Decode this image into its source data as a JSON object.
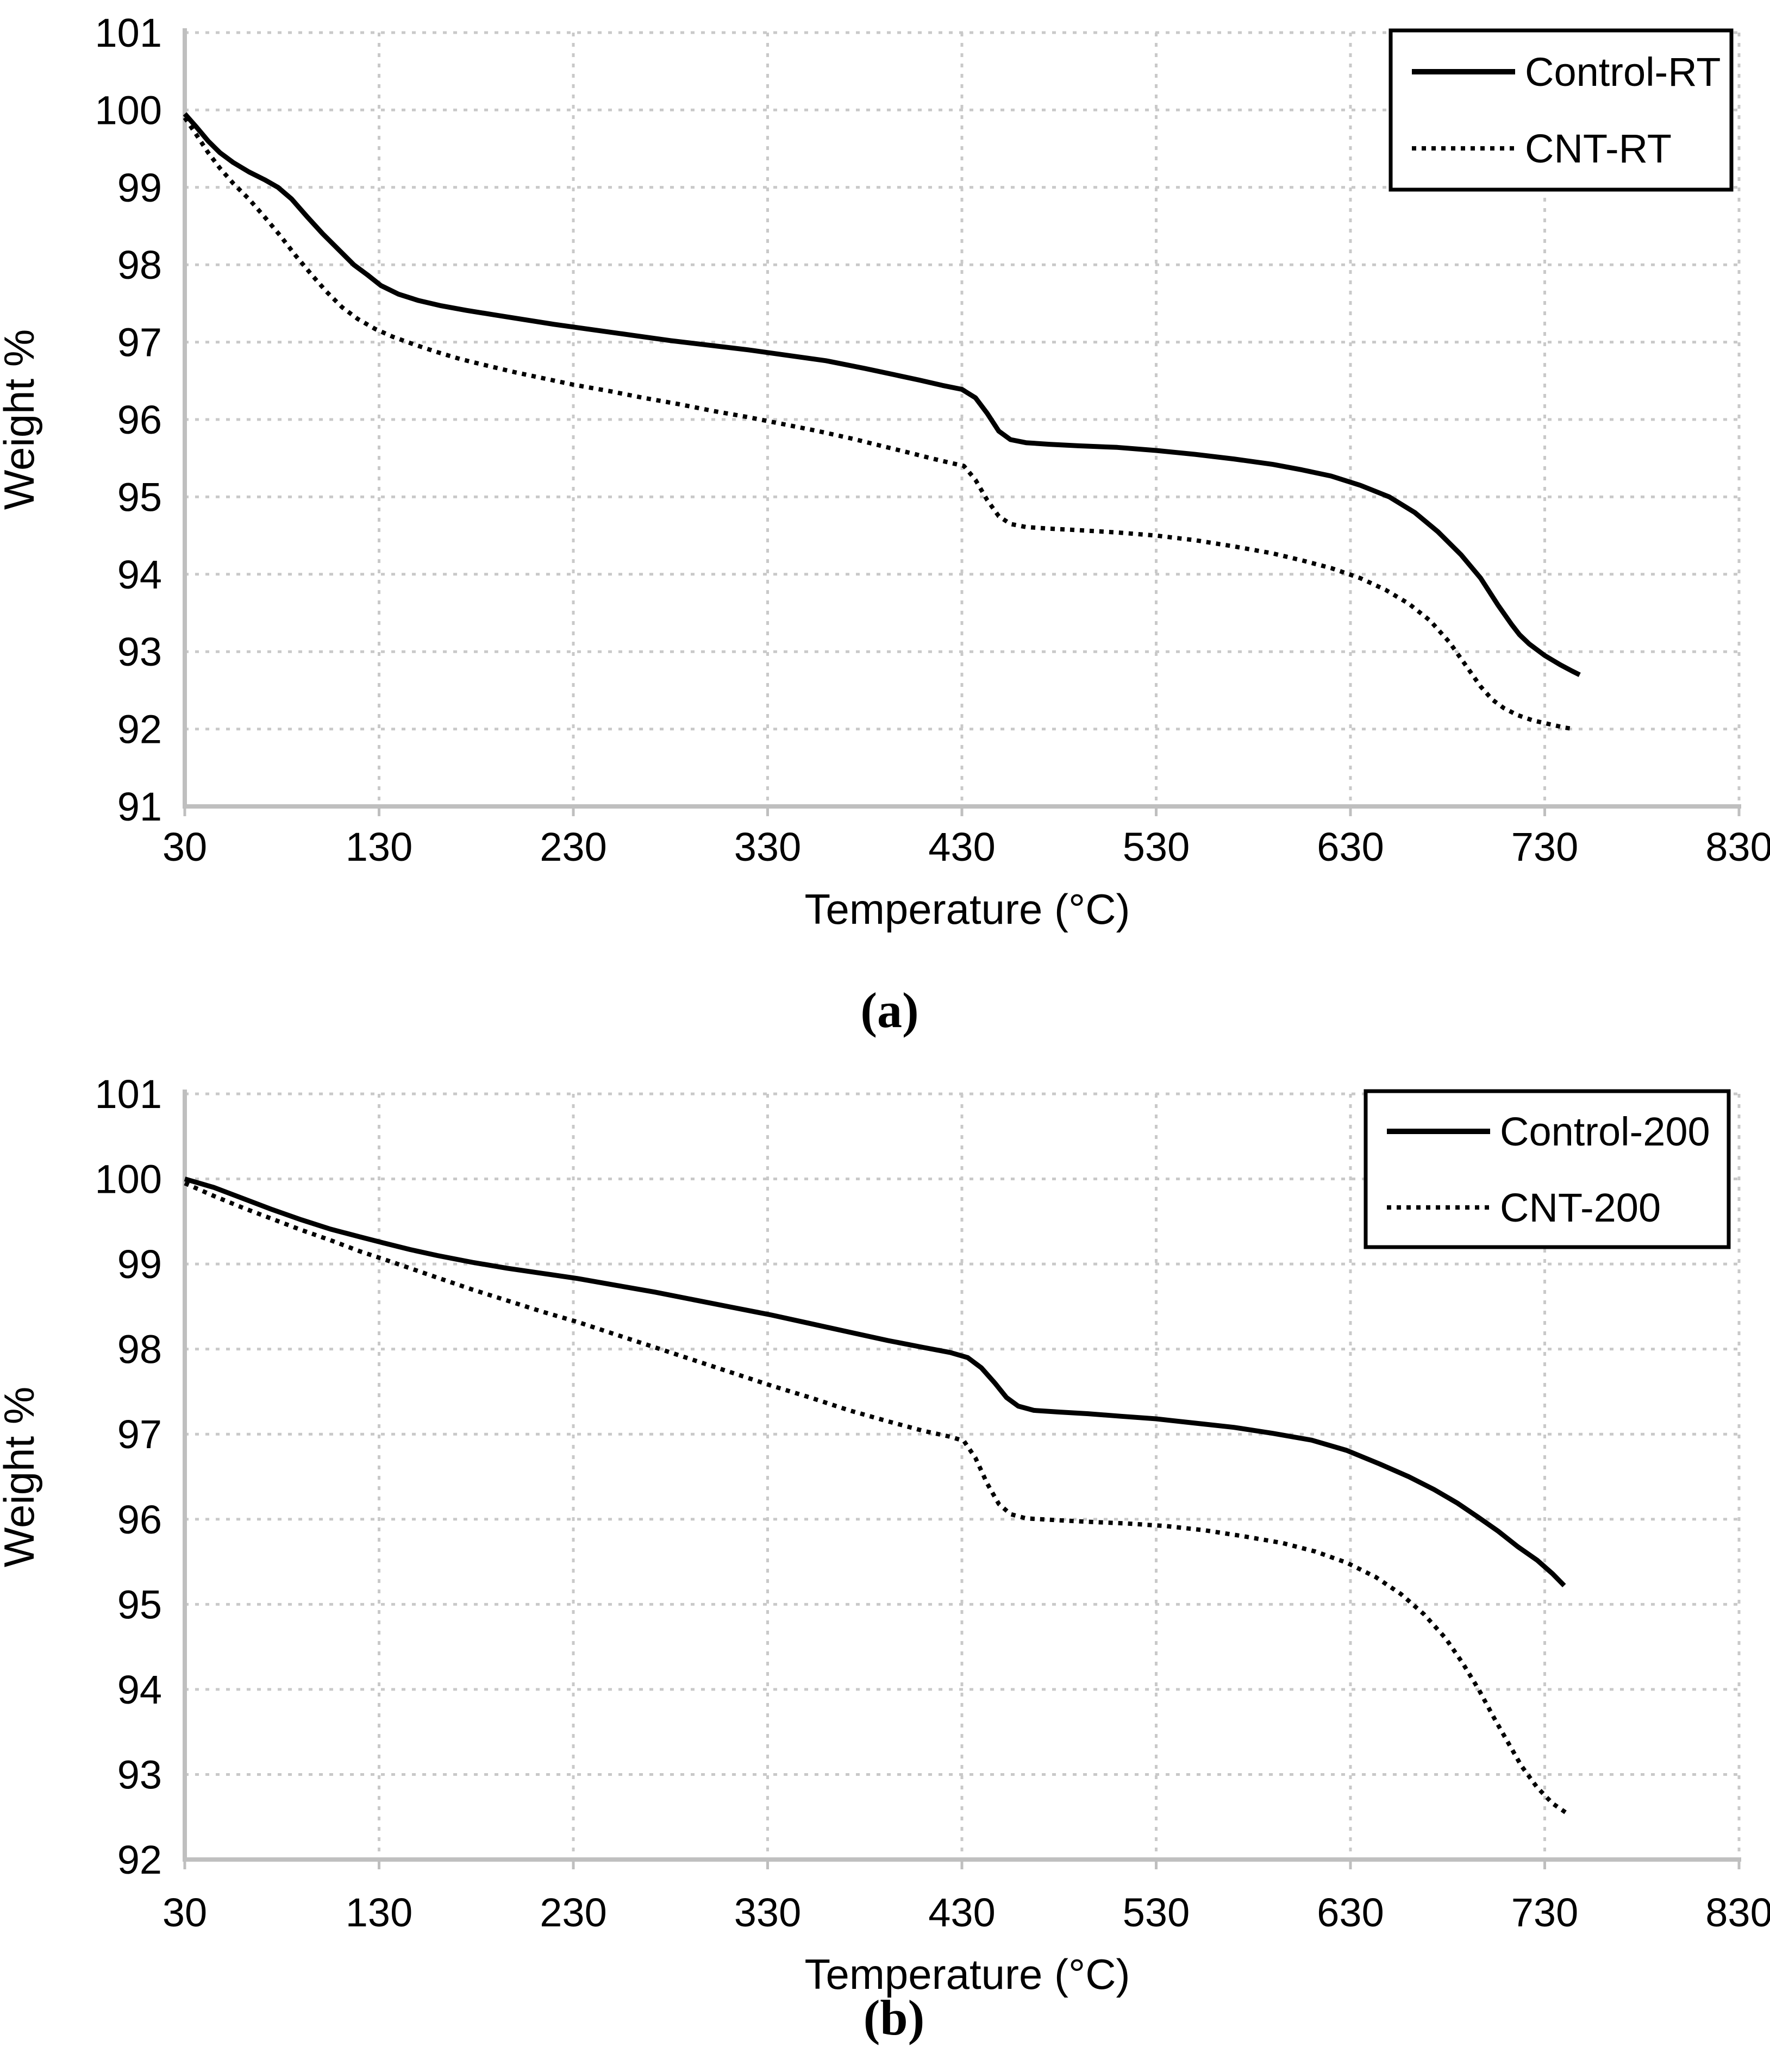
{
  "styles": {
    "background": "#ffffff",
    "curve_color": "#000000",
    "grid_color": "#c9c9c9",
    "axis_color": "#bfbfbf",
    "text_color": "#000000",
    "legend_border_color": "#000000",
    "legend_fill": "#ffffff"
  },
  "chart_data": [
    {
      "id": "a",
      "type": "line",
      "caption": "(a)",
      "xlabel": "Temperature (°C)",
      "ylabel": "Weight %",
      "xlim": [
        30,
        830
      ],
      "ylim": [
        91,
        101
      ],
      "x_ticks": [
        30,
        130,
        230,
        330,
        430,
        530,
        630,
        730,
        830
      ],
      "y_ticks": [
        101,
        100,
        99,
        98,
        97,
        96,
        95,
        94,
        93,
        92,
        91
      ],
      "grid": true,
      "legend_position": "top-right",
      "series": [
        {
          "name": "Control-RT",
          "line": "solid",
          "color": "#000000",
          "points": [
            [
              30,
              99.95
            ],
            [
              36,
              99.78
            ],
            [
              42,
              99.6
            ],
            [
              48,
              99.45
            ],
            [
              55,
              99.32
            ],
            [
              63,
              99.2
            ],
            [
              71,
              99.1
            ],
            [
              78,
              99.0
            ],
            [
              85,
              98.85
            ],
            [
              93,
              98.62
            ],
            [
              101,
              98.4
            ],
            [
              109,
              98.2
            ],
            [
              117,
              98.0
            ],
            [
              124,
              97.87
            ],
            [
              131,
              97.73
            ],
            [
              140,
              97.62
            ],
            [
              150,
              97.54
            ],
            [
              162,
              97.47
            ],
            [
              175,
              97.41
            ],
            [
              190,
              97.35
            ],
            [
              205,
              97.29
            ],
            [
              220,
              97.23
            ],
            [
              240,
              97.16
            ],
            [
              260,
              97.09
            ],
            [
              280,
              97.02
            ],
            [
              300,
              96.96
            ],
            [
              320,
              96.9
            ],
            [
              340,
              96.83
            ],
            [
              360,
              96.76
            ],
            [
              380,
              96.66
            ],
            [
              395,
              96.58
            ],
            [
              408,
              96.51
            ],
            [
              420,
              96.44
            ],
            [
              430,
              96.39
            ],
            [
              437,
              96.28
            ],
            [
              443,
              96.08
            ],
            [
              449,
              95.85
            ],
            [
              455,
              95.74
            ],
            [
              463,
              95.7
            ],
            [
              475,
              95.68
            ],
            [
              490,
              95.66
            ],
            [
              510,
              95.64
            ],
            [
              530,
              95.6
            ],
            [
              550,
              95.55
            ],
            [
              570,
              95.49
            ],
            [
              590,
              95.42
            ],
            [
              605,
              95.35
            ],
            [
              620,
              95.27
            ],
            [
              635,
              95.15
            ],
            [
              650,
              95.0
            ],
            [
              663,
              94.8
            ],
            [
              675,
              94.55
            ],
            [
              687,
              94.25
            ],
            [
              697,
              93.95
            ],
            [
              706,
              93.6
            ],
            [
              713,
              93.35
            ],
            [
              717,
              93.22
            ],
            [
              722,
              93.1
            ],
            [
              730,
              92.95
            ],
            [
              738,
              92.83
            ],
            [
              744,
              92.75
            ],
            [
              748,
              92.7
            ]
          ]
        },
        {
          "name": "CNT-RT",
          "line": "dotted",
          "color": "#000000",
          "points": [
            [
              30,
              99.9
            ],
            [
              36,
              99.68
            ],
            [
              42,
              99.45
            ],
            [
              48,
              99.25
            ],
            [
              55,
              99.05
            ],
            [
              63,
              98.85
            ],
            [
              71,
              98.62
            ],
            [
              79,
              98.38
            ],
            [
              87,
              98.12
            ],
            [
              95,
              97.88
            ],
            [
              103,
              97.65
            ],
            [
              111,
              97.45
            ],
            [
              119,
              97.3
            ],
            [
              128,
              97.17
            ],
            [
              137,
              97.07
            ],
            [
              148,
              96.97
            ],
            [
              160,
              96.87
            ],
            [
              172,
              96.78
            ],
            [
              185,
              96.7
            ],
            [
              200,
              96.61
            ],
            [
              215,
              96.53
            ],
            [
              230,
              96.45
            ],
            [
              248,
              96.37
            ],
            [
              266,
              96.28
            ],
            [
              284,
              96.2
            ],
            [
              302,
              96.11
            ],
            [
              320,
              96.03
            ],
            [
              338,
              95.94
            ],
            [
              356,
              95.85
            ],
            [
              374,
              95.75
            ],
            [
              390,
              95.65
            ],
            [
              403,
              95.57
            ],
            [
              414,
              95.5
            ],
            [
              424,
              95.44
            ],
            [
              431,
              95.4
            ],
            [
              437,
              95.22
            ],
            [
              443,
              94.96
            ],
            [
              449,
              94.75
            ],
            [
              455,
              94.65
            ],
            [
              463,
              94.61
            ],
            [
              475,
              94.59
            ],
            [
              490,
              94.57
            ],
            [
              510,
              94.54
            ],
            [
              530,
              94.5
            ],
            [
              550,
              94.44
            ],
            [
              570,
              94.36
            ],
            [
              590,
              94.27
            ],
            [
              605,
              94.18
            ],
            [
              620,
              94.08
            ],
            [
              635,
              93.95
            ],
            [
              648,
              93.8
            ],
            [
              660,
              93.62
            ],
            [
              671,
              93.4
            ],
            [
              681,
              93.12
            ],
            [
              690,
              92.8
            ],
            [
              697,
              92.55
            ],
            [
              703,
              92.38
            ],
            [
              709,
              92.27
            ],
            [
              716,
              92.18
            ],
            [
              724,
              92.11
            ],
            [
              733,
              92.06
            ],
            [
              740,
              92.02
            ],
            [
              745,
              92.0
            ]
          ]
        }
      ]
    },
    {
      "id": "b",
      "type": "line",
      "caption": "(b)",
      "xlabel": "Temperature (°C)",
      "ylabel": "Weight %",
      "xlim": [
        30,
        830
      ],
      "ylim": [
        92,
        101
      ],
      "x_ticks": [
        30,
        130,
        230,
        330,
        430,
        530,
        630,
        730,
        830
      ],
      "y_ticks": [
        101,
        100,
        99,
        98,
        97,
        96,
        95,
        94,
        93,
        92
      ],
      "grid": true,
      "legend_position": "top-right",
      "series": [
        {
          "name": "Control-200",
          "line": "solid",
          "color": "#000000",
          "points": [
            [
              30,
              100.0
            ],
            [
              45,
              99.9
            ],
            [
              60,
              99.77
            ],
            [
              75,
              99.64
            ],
            [
              90,
              99.52
            ],
            [
              105,
              99.41
            ],
            [
              120,
              99.32
            ],
            [
              132,
              99.25
            ],
            [
              146,
              99.17
            ],
            [
              160,
              99.1
            ],
            [
              178,
              99.02
            ],
            [
              196,
              98.95
            ],
            [
              214,
              98.89
            ],
            [
              232,
              98.83
            ],
            [
              252,
              98.75
            ],
            [
              272,
              98.67
            ],
            [
              292,
              98.58
            ],
            [
              312,
              98.49
            ],
            [
              332,
              98.4
            ],
            [
              352,
              98.3
            ],
            [
              372,
              98.2
            ],
            [
              392,
              98.1
            ],
            [
              410,
              98.02
            ],
            [
              424,
              97.96
            ],
            [
              433,
              97.9
            ],
            [
              440,
              97.78
            ],
            [
              447,
              97.6
            ],
            [
              453,
              97.43
            ],
            [
              459,
              97.33
            ],
            [
              467,
              97.28
            ],
            [
              480,
              97.26
            ],
            [
              495,
              97.24
            ],
            [
              512,
              97.21
            ],
            [
              530,
              97.18
            ],
            [
              550,
              97.13
            ],
            [
              570,
              97.08
            ],
            [
              590,
              97.01
            ],
            [
              610,
              96.93
            ],
            [
              628,
              96.81
            ],
            [
              645,
              96.65
            ],
            [
              660,
              96.5
            ],
            [
              673,
              96.35
            ],
            [
              685,
              96.19
            ],
            [
              696,
              96.02
            ],
            [
              706,
              95.86
            ],
            [
              716,
              95.68
            ],
            [
              726,
              95.52
            ],
            [
              734,
              95.36
            ],
            [
              740,
              95.22
            ]
          ]
        },
        {
          "name": "CNT-200",
          "line": "dotted",
          "color": "#000000",
          "points": [
            [
              30,
              99.95
            ],
            [
              45,
              99.8
            ],
            [
              60,
              99.66
            ],
            [
              75,
              99.53
            ],
            [
              90,
              99.4
            ],
            [
              105,
              99.28
            ],
            [
              120,
              99.15
            ],
            [
              132,
              99.06
            ],
            [
              146,
              98.95
            ],
            [
              160,
              98.84
            ],
            [
              178,
              98.7
            ],
            [
              196,
              98.57
            ],
            [
              214,
              98.44
            ],
            [
              232,
              98.32
            ],
            [
              252,
              98.17
            ],
            [
              272,
              98.02
            ],
            [
              292,
              97.87
            ],
            [
              312,
              97.72
            ],
            [
              332,
              97.57
            ],
            [
              352,
              97.43
            ],
            [
              372,
              97.28
            ],
            [
              392,
              97.15
            ],
            [
              410,
              97.04
            ],
            [
              424,
              96.97
            ],
            [
              431,
              96.92
            ],
            [
              437,
              96.72
            ],
            [
              443,
              96.42
            ],
            [
              449,
              96.18
            ],
            [
              455,
              96.06
            ],
            [
              463,
              96.01
            ],
            [
              478,
              95.99
            ],
            [
              495,
              95.97
            ],
            [
              515,
              95.95
            ],
            [
              535,
              95.92
            ],
            [
              555,
              95.87
            ],
            [
              575,
              95.8
            ],
            [
              595,
              95.72
            ],
            [
              612,
              95.62
            ],
            [
              628,
              95.49
            ],
            [
              643,
              95.32
            ],
            [
              656,
              95.12
            ],
            [
              668,
              94.88
            ],
            [
              679,
              94.6
            ],
            [
              688,
              94.3
            ],
            [
              696,
              94.0
            ],
            [
              704,
              93.66
            ],
            [
              711,
              93.38
            ],
            [
              718,
              93.1
            ],
            [
              726,
              92.85
            ],
            [
              734,
              92.66
            ],
            [
              741,
              92.55
            ]
          ]
        }
      ]
    }
  ]
}
